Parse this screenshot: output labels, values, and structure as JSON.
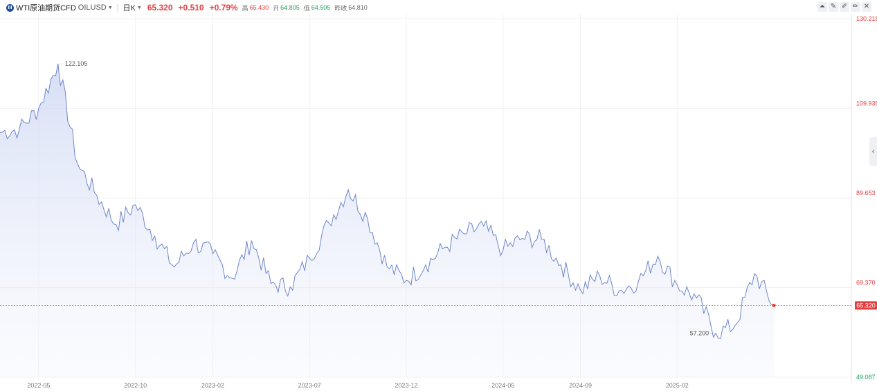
{
  "header": {
    "logo_text": "III",
    "name": "WTI原油期货CFD",
    "code": "OILUSD",
    "period": "日K",
    "price": "65.320",
    "change": "+0.510",
    "change_pct": "+0.79%",
    "high_label": "高",
    "high": "65.430",
    "open_label": "开",
    "open": "64.805",
    "low_label": "低",
    "low": "64.505",
    "prev_label": "昨收",
    "prev": "64.810"
  },
  "toolbar": [
    "chart-type-icon",
    "draw-icon",
    "brush-icon",
    "pen-icon",
    "close-icon"
  ],
  "colors": {
    "line": "#6f86c9",
    "up": "#e53e3e",
    "down": "#1aa260",
    "grid": "#f0f0f0"
  },
  "chart_data": {
    "type": "area",
    "x": [
      "2022-03",
      "2022-04",
      "2022-05",
      "2022-06",
      "2022-07",
      "2022-08",
      "2022-09",
      "2022-10",
      "2022-11",
      "2022-12",
      "2023-01",
      "2023-02",
      "2023-03",
      "2023-04",
      "2023-05",
      "2023-06",
      "2023-07",
      "2023-08",
      "2023-09",
      "2023-10",
      "2023-11",
      "2023-12",
      "2024-01",
      "2024-02",
      "2024-03",
      "2024-04",
      "2024-05",
      "2024-06",
      "2024-07",
      "2024-08",
      "2024-09",
      "2024-10",
      "2024-11",
      "2024-12",
      "2025-01",
      "2025-02",
      "2025-03",
      "2025-04",
      "2025-05",
      "2025-06",
      "2025-07"
    ],
    "values": [
      104.5,
      105.2,
      109.9,
      120.0,
      97.5,
      90.2,
      83.6,
      88.1,
      81.0,
      74.0,
      79.5,
      77.0,
      71.5,
      80.0,
      70.3,
      69.5,
      76.0,
      84.0,
      91.5,
      85.0,
      74.2,
      71.0,
      74.5,
      78.5,
      81.5,
      83.3,
      77.8,
      80.5,
      80.3,
      74.5,
      68.8,
      72.0,
      68.6,
      70.8,
      76.5,
      70.0,
      67.0,
      59.0,
      60.8,
      72.5,
      65.32
    ],
    "annotations": {
      "max": "122.105",
      "min": "57.200",
      "last": "65.320"
    },
    "yticks": [
      "130.218",
      "109.935",
      "89.653",
      "69.370",
      "49.087"
    ],
    "ylim": [
      49.087,
      130.218
    ],
    "xticks": [
      {
        "label": "2022-05",
        "i": 2
      },
      {
        "label": "2022-10",
        "i": 7
      },
      {
        "label": "2023-02",
        "i": 11
      },
      {
        "label": "2023-07",
        "i": 16
      },
      {
        "label": "2023-12",
        "i": 21
      },
      {
        "label": "2024-05",
        "i": 26
      },
      {
        "label": "2024-09",
        "i": 30
      },
      {
        "label": "2025-02",
        "i": 35
      }
    ],
    "last_price": 65.32,
    "grid": true
  }
}
